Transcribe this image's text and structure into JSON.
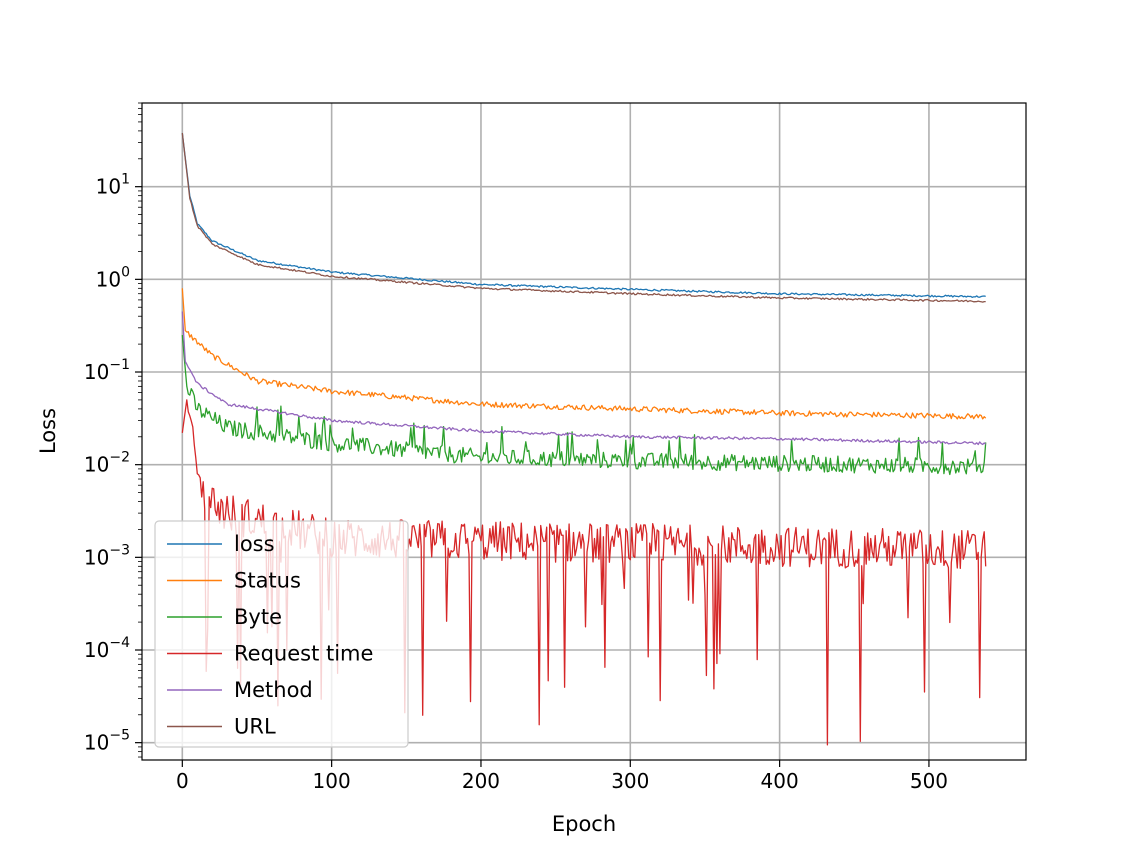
{
  "chart_data": {
    "type": "line",
    "title": "",
    "xlabel": "Epoch",
    "ylabel": "Loss",
    "yscale": "log",
    "xlim": [
      -27,
      565
    ],
    "ylim": [
      6.5e-06,
      80
    ],
    "xticks": [
      0,
      100,
      200,
      300,
      400,
      500
    ],
    "yticks": [
      {
        "base": "10",
        "exp": "1",
        "v": 10
      },
      {
        "base": "10",
        "exp": "0",
        "v": 1
      },
      {
        "base": "10",
        "exp": "−1",
        "v": 0.1
      },
      {
        "base": "10",
        "exp": "−2",
        "v": 0.01
      },
      {
        "base": "10",
        "exp": "−3",
        "v": 0.001
      },
      {
        "base": "10",
        "exp": "−4",
        "v": 0.0001
      },
      {
        "base": "10",
        "exp": "−5",
        "v": 1e-05
      }
    ],
    "grid": true,
    "legend_placement": "lower-left",
    "epochs": 539,
    "series": [
      {
        "name": "loss",
        "color": "#1f77b4",
        "noise": 0.01,
        "spikes": 0,
        "points": [
          [
            0,
            38
          ],
          [
            5,
            8
          ],
          [
            10,
            4
          ],
          [
            20,
            2.6
          ],
          [
            50,
            1.6
          ],
          [
            100,
            1.2
          ],
          [
            200,
            0.88
          ],
          [
            300,
            0.78
          ],
          [
            400,
            0.7
          ],
          [
            538,
            0.65
          ]
        ]
      },
      {
        "name": "Status",
        "color": "#ff7f0e",
        "noise": 0.03,
        "spikes": 0,
        "points": [
          [
            0,
            0.8
          ],
          [
            2,
            0.28
          ],
          [
            5,
            0.25
          ],
          [
            20,
            0.15
          ],
          [
            50,
            0.08
          ],
          [
            100,
            0.062
          ],
          [
            200,
            0.045
          ],
          [
            300,
            0.04
          ],
          [
            400,
            0.036
          ],
          [
            538,
            0.033
          ]
        ]
      },
      {
        "name": "Byte",
        "color": "#2ca02c",
        "noise": 0.09,
        "spikes": 0,
        "points": [
          [
            0,
            0.25
          ],
          [
            3,
            0.07
          ],
          [
            10,
            0.04
          ],
          [
            30,
            0.025
          ],
          [
            100,
            0.017
          ],
          [
            200,
            0.012
          ],
          [
            300,
            0.011
          ],
          [
            538,
            0.0095
          ]
        ]
      },
      {
        "name": "Request time",
        "color": "#d62728",
        "noise": 0.22,
        "spikes": 0.08,
        "points": [
          [
            0,
            0.022
          ],
          [
            3,
            0.05
          ],
          [
            6,
            0.03
          ],
          [
            12,
            0.005
          ],
          [
            30,
            0.003
          ],
          [
            100,
            0.0016
          ],
          [
            538,
            0.0012
          ]
        ]
      },
      {
        "name": "Method",
        "color": "#9467bd",
        "noise": 0.015,
        "spikes": 0,
        "points": [
          [
            0,
            0.45
          ],
          [
            2,
            0.13
          ],
          [
            10,
            0.075
          ],
          [
            30,
            0.045
          ],
          [
            100,
            0.03
          ],
          [
            200,
            0.023
          ],
          [
            300,
            0.02
          ],
          [
            400,
            0.019
          ],
          [
            538,
            0.017
          ]
        ]
      },
      {
        "name": "URL",
        "color": "#8c564b",
        "noise": 0.01,
        "spikes": 0,
        "points": [
          [
            0,
            38
          ],
          [
            5,
            7.5
          ],
          [
            10,
            3.8
          ],
          [
            20,
            2.4
          ],
          [
            50,
            1.45
          ],
          [
            100,
            1.08
          ],
          [
            200,
            0.8
          ],
          [
            300,
            0.7
          ],
          [
            400,
            0.63
          ],
          [
            538,
            0.58
          ]
        ]
      }
    ]
  }
}
